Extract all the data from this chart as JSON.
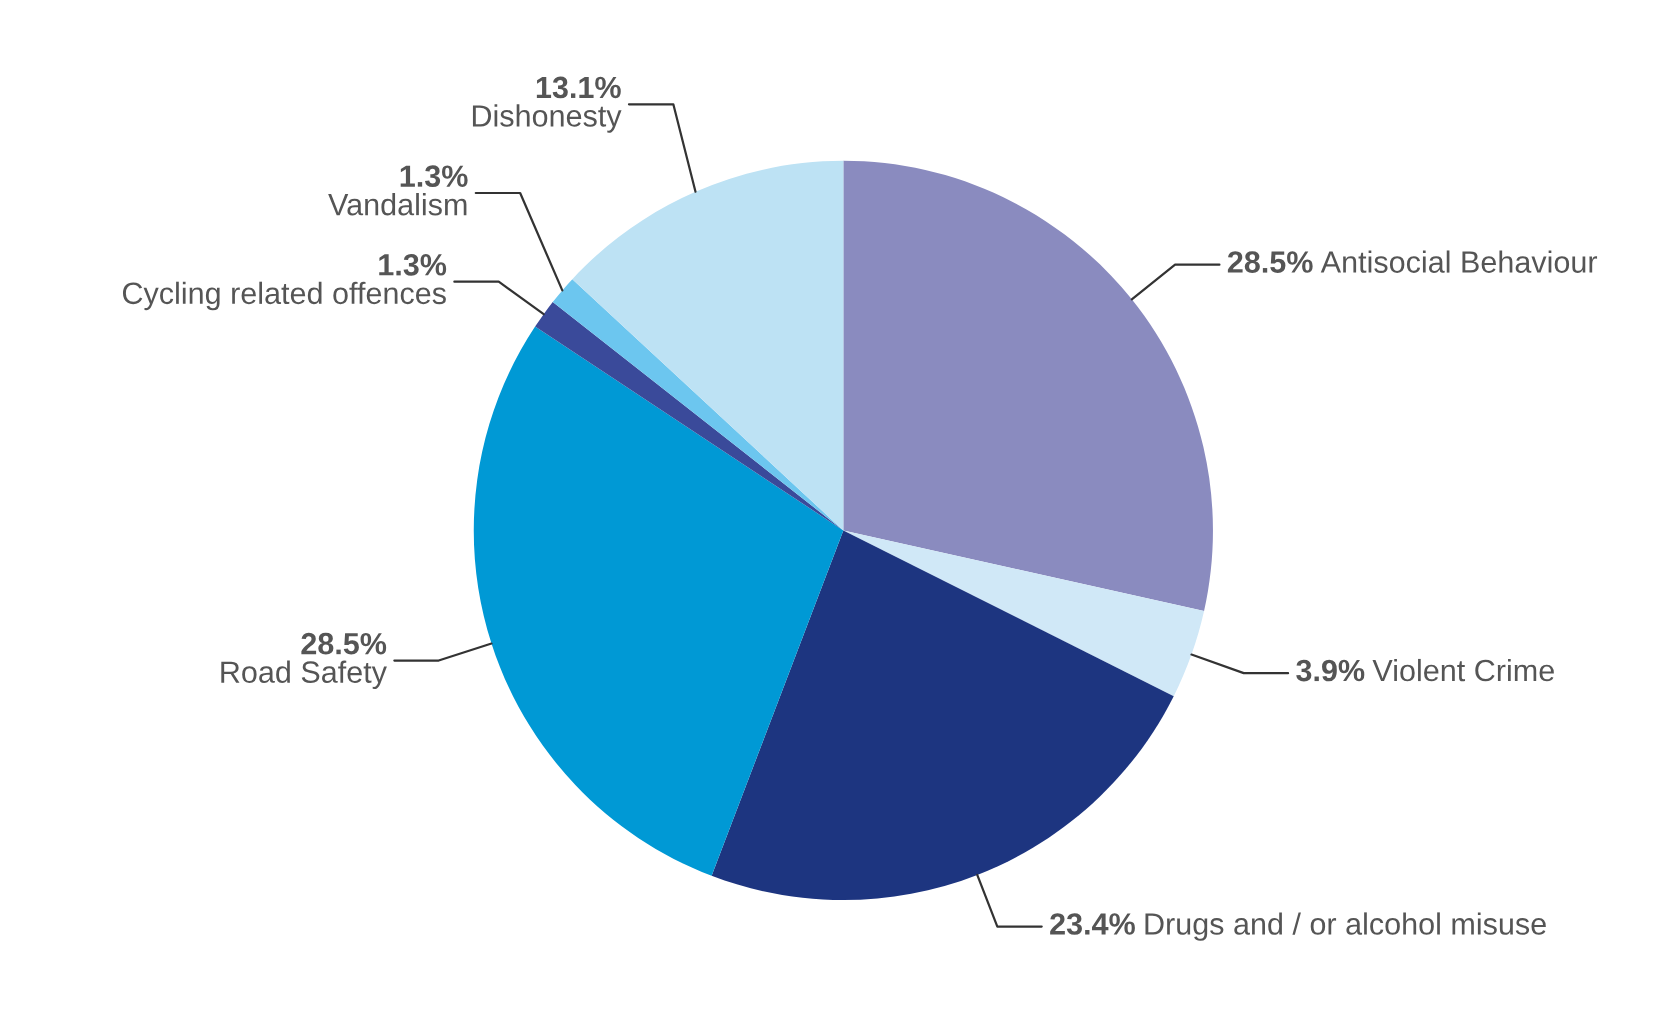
{
  "chart_data": {
    "type": "pie",
    "categories": [
      "Antisocial Behaviour",
      "Violent Crime",
      "Drugs and / or alcohol misuse",
      "Road Safety",
      "Cycling related offences",
      "Vandalism",
      "Dishonesty"
    ],
    "values": [
      28.5,
      3.9,
      23.4,
      28.5,
      1.3,
      1.3,
      13.1
    ],
    "value_labels": [
      "28.5%",
      "3.9%",
      "23.4%",
      "28.5%",
      "1.3%",
      "1.3%",
      "13.1%"
    ],
    "colors": [
      "#8a8bbf",
      "#d0e8f7",
      "#1d3580",
      "#0099d5",
      "#3a4a9a",
      "#6cc6ef",
      "#bde2f4"
    ]
  }
}
